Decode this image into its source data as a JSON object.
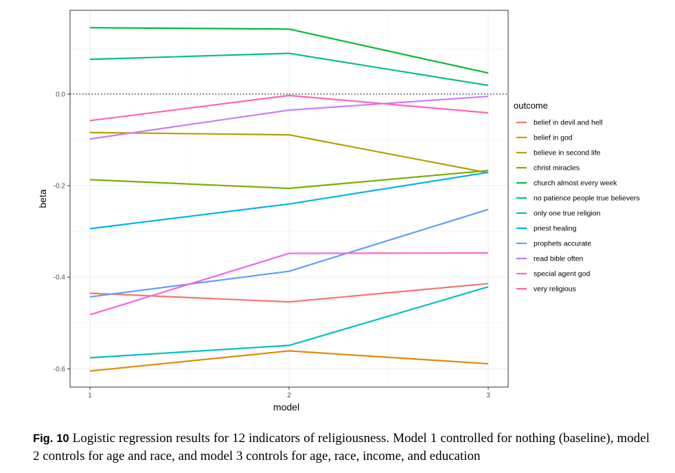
{
  "chart_data": {
    "type": "line",
    "title": "",
    "xlabel": "model",
    "ylabel": "beta",
    "x": [
      1,
      2,
      3
    ],
    "x_ticks": [
      "1",
      "2",
      "3"
    ],
    "y_ticks": [
      "0.0",
      "-0.2",
      "-0.4",
      "-0.6"
    ],
    "y_tick_values": [
      0.0,
      -0.2,
      -0.4,
      -0.6
    ],
    "xlim": [
      0.9,
      3.1
    ],
    "ylim": [
      -0.64,
      0.183
    ],
    "grid": true,
    "zero_line": "dotted",
    "legend_title": "outcome",
    "legend_position": "right",
    "series": [
      {
        "name": "belief in devil and hell",
        "color": "#F8766D",
        "values": [
          -0.435,
          -0.454,
          -0.414
        ]
      },
      {
        "name": "belief in god",
        "color": "#DE8C00",
        "values": [
          -0.605,
          -0.561,
          -0.589
        ]
      },
      {
        "name": "believe in second life",
        "color": "#B79F00",
        "values": [
          -0.084,
          -0.089,
          -0.172
        ]
      },
      {
        "name": "christ miracles",
        "color": "#7CAE00",
        "values": [
          -0.187,
          -0.206,
          -0.167
        ]
      },
      {
        "name": "church almost every week",
        "color": "#00BA38",
        "values": [
          0.145,
          0.142,
          0.046
        ]
      },
      {
        "name": "no patience people true believers",
        "color": "#00C08B",
        "values": [
          0.076,
          0.089,
          0.019
        ]
      },
      {
        "name": "only one true religion",
        "color": "#00BFC4",
        "values": [
          -0.576,
          -0.549,
          -0.421
        ]
      },
      {
        "name": "priest healing",
        "color": "#00B4F0",
        "values": [
          -0.294,
          -0.24,
          -0.171
        ]
      },
      {
        "name": "prophets accurate",
        "color": "#619CFF",
        "values": [
          -0.443,
          -0.387,
          -0.252
        ]
      },
      {
        "name": "read bible often",
        "color": "#C77CFF",
        "values": [
          -0.098,
          -0.035,
          -0.005
        ]
      },
      {
        "name": "special agent god",
        "color": "#F564E3",
        "values": [
          -0.482,
          -0.348,
          -0.347
        ]
      },
      {
        "name": "very religious",
        "color": "#FF64B0",
        "values": [
          -0.058,
          -0.003,
          -0.041
        ]
      }
    ]
  },
  "caption": {
    "label": "Fig. 10",
    "text": "Logistic regression results for 12 indicators of religiousness. Model 1 controlled for nothing (baseline), model 2 controls for age and race, and model 3 controls for age, race, income, and education"
  }
}
